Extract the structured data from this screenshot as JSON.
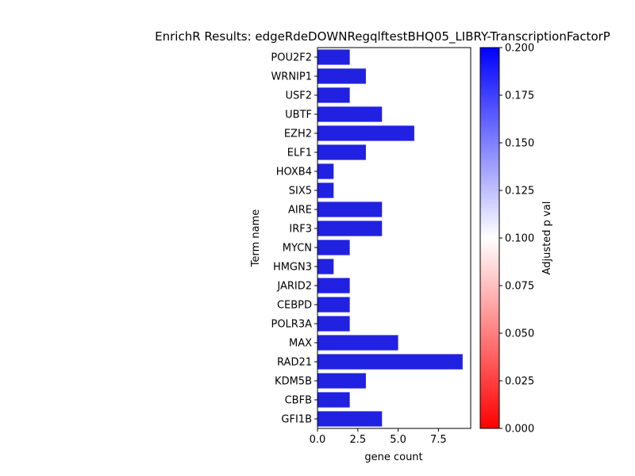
{
  "chart_data": {
    "type": "bar",
    "orientation": "horizontal",
    "title": "EnrichR Results: edgeRdeDOWNRegqlftestBHQ05_LIBRY-TranscriptionFactorP",
    "xlabel": "gene count",
    "ylabel": "Term name",
    "xlim": [
      0,
      9.5
    ],
    "x_ticks": [
      "0.0",
      "2.5",
      "5.0",
      "7.5"
    ],
    "categories": [
      "POU2F2",
      "WRNIP1",
      "USF2",
      "UBTF",
      "EZH2",
      "ELF1",
      "HOXB4",
      "SIX5",
      "AIRE",
      "IRF3",
      "MYCN",
      "HMGN3",
      "JARID2",
      "CEBPD",
      "POLR3A",
      "MAX",
      "RAD21",
      "KDM5B",
      "CBFB",
      "GFI1B"
    ],
    "values": [
      2,
      3,
      2,
      4,
      6,
      3,
      1,
      1,
      4,
      4,
      2,
      1,
      2,
      2,
      2,
      5,
      9,
      3,
      2,
      4
    ],
    "bar_color": "#2121e1",
    "grid": false,
    "legend": "none",
    "colorbar": {
      "label": "Adjusted p val",
      "range": [
        0.0,
        0.2
      ],
      "ticks": [
        "0.000",
        "0.025",
        "0.050",
        "0.075",
        "0.100",
        "0.125",
        "0.150",
        "0.175",
        "0.200"
      ],
      "colors": [
        "#ff0000",
        "#ffffff",
        "#0000ff"
      ]
    }
  }
}
